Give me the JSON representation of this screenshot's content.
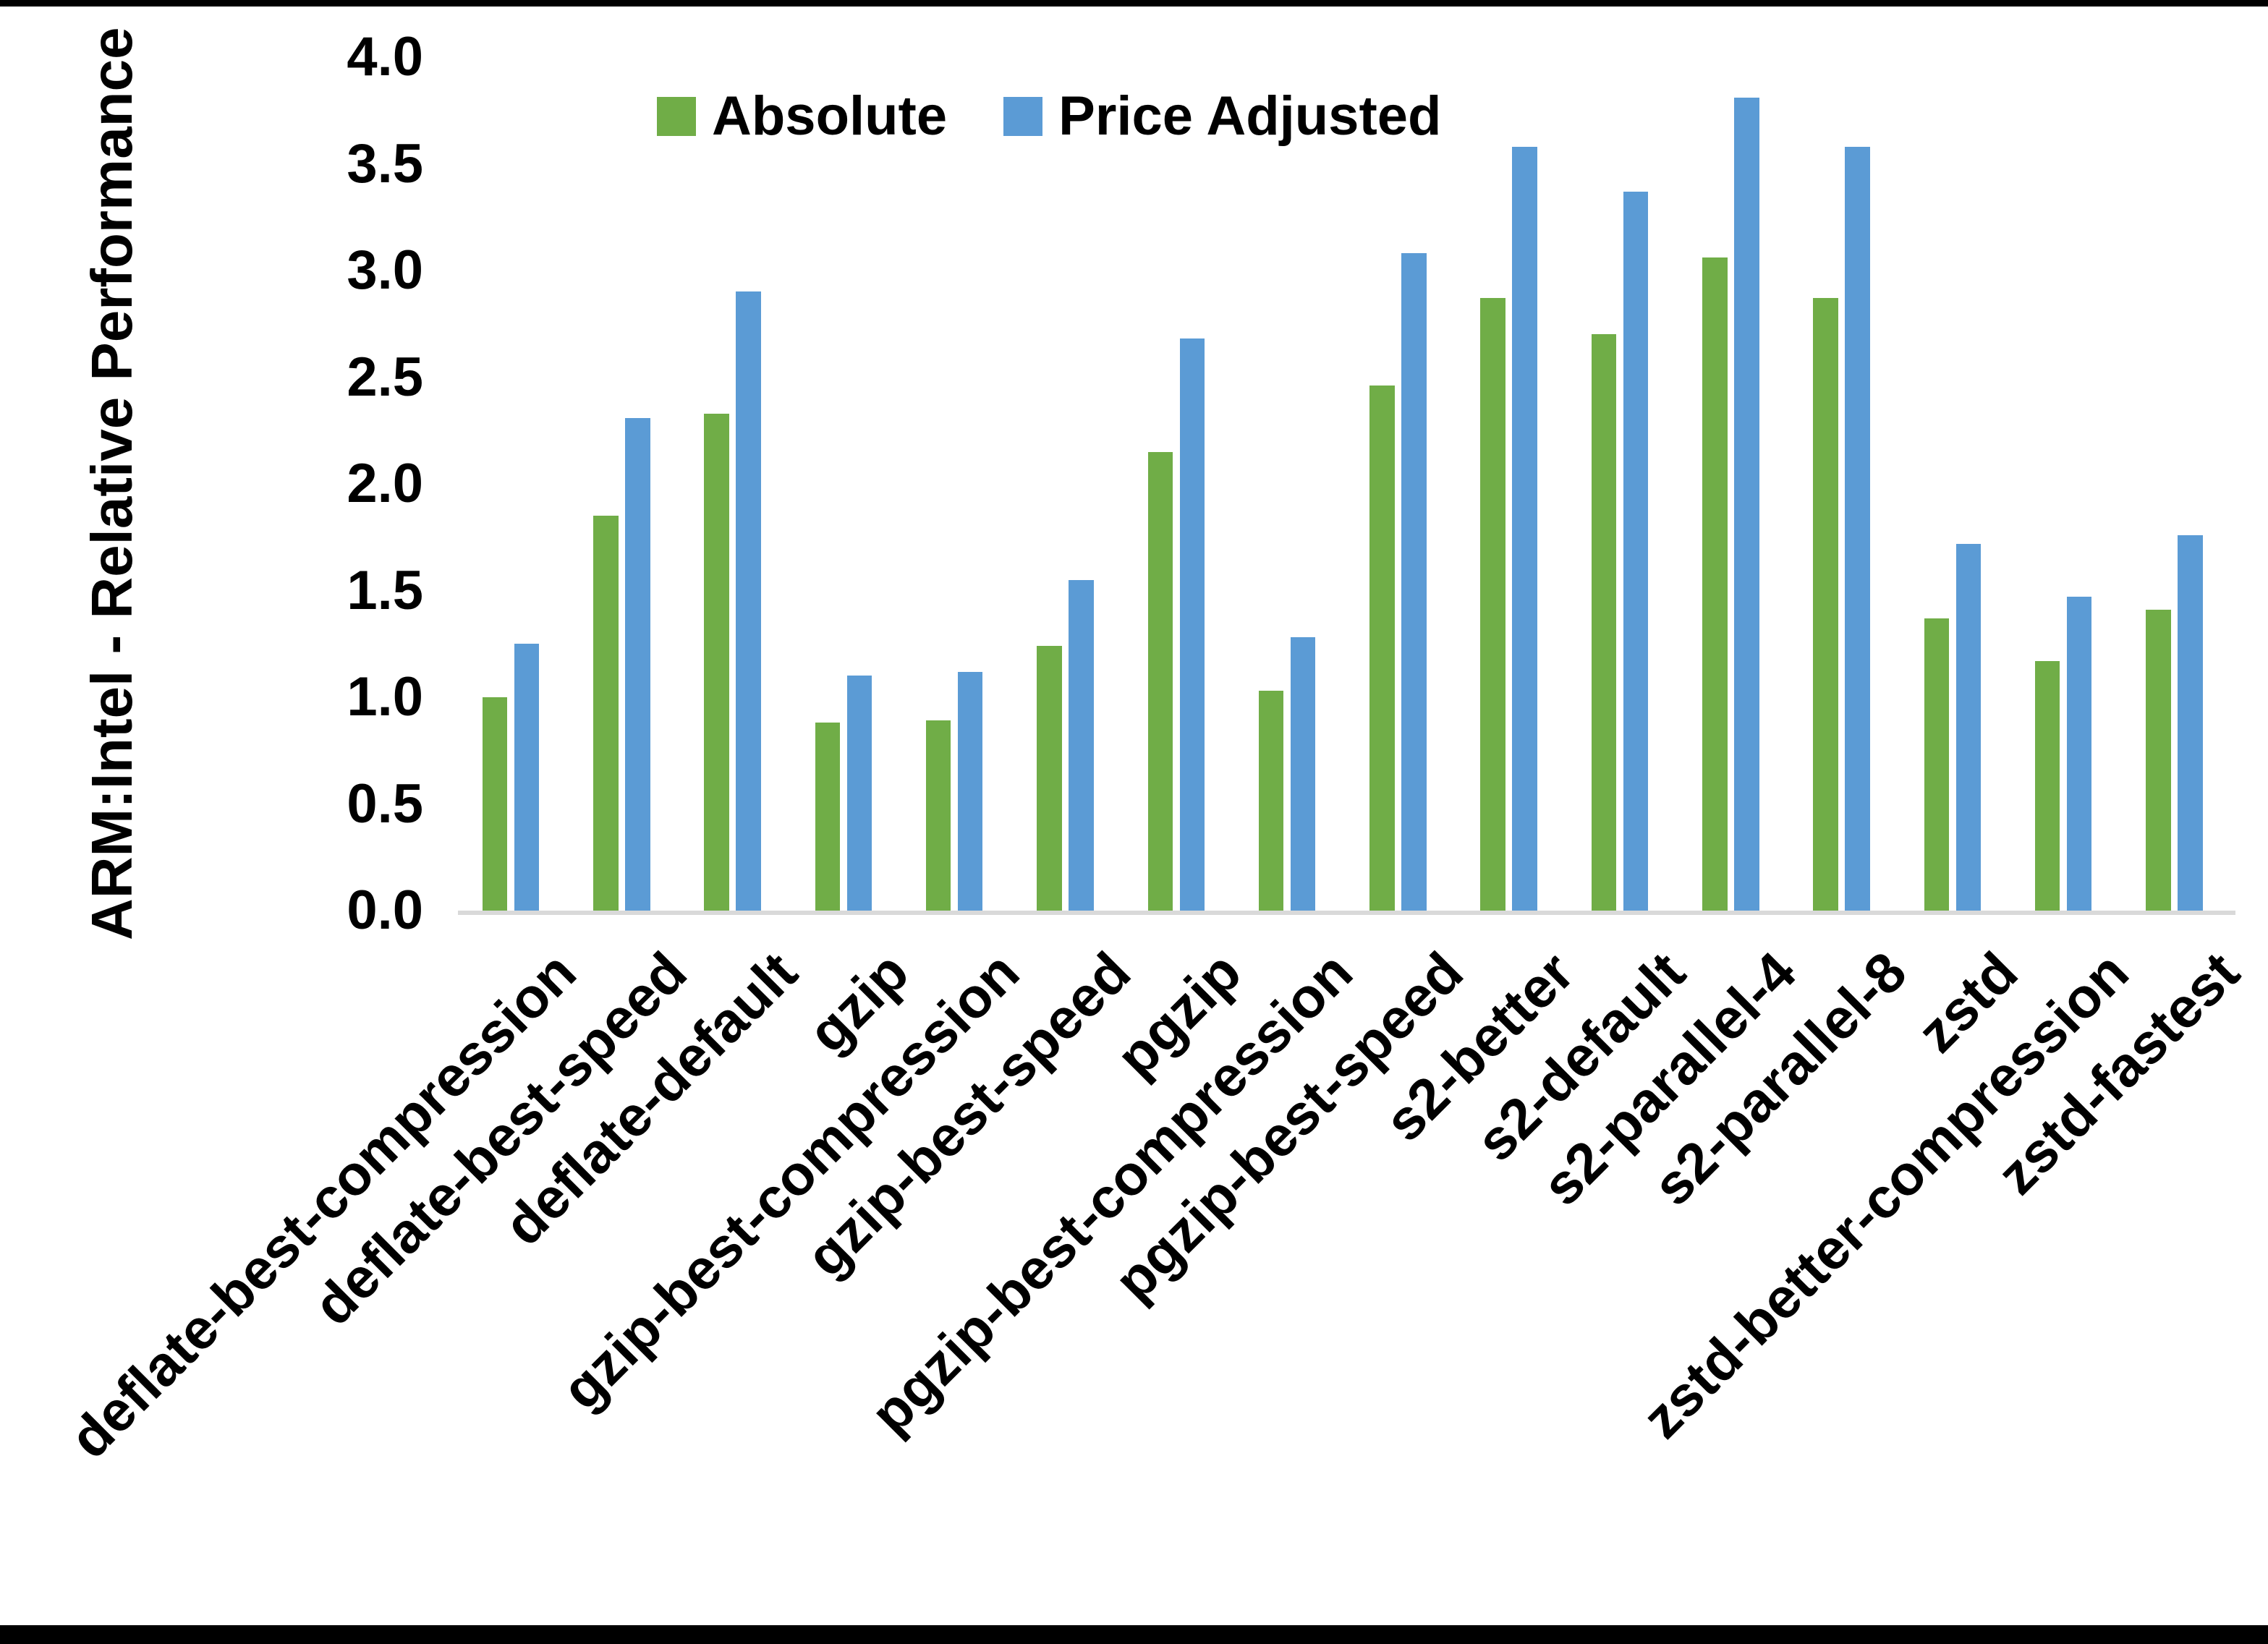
{
  "chart_data": {
    "type": "bar",
    "title": "",
    "xlabel": "",
    "ylabel": "ARM:Intel - Relative Performance",
    "ylim": [
      0.0,
      4.0
    ],
    "ytick_step": 0.5,
    "yticks": [
      "4.0",
      "3.5",
      "3.0",
      "2.5",
      "2.0",
      "1.5",
      "1.0",
      "0.5",
      "0.0"
    ],
    "grid": false,
    "legend_position": "top",
    "axis_line_color": "#D9D9D9",
    "categories": [
      "deflate-best-compression",
      "deflate-best-speed",
      "deflate-default",
      "gzip",
      "gzip-best-compression",
      "gzip-best-speed",
      "pgzip",
      "pgzip-best-compression",
      "pgzip-best-speed",
      "s2-better",
      "s2-default",
      "s2-parallel-4",
      "s2-parallel-8",
      "zstd",
      "zstd-better-compression",
      "zstd-fastest"
    ],
    "series": [
      {
        "name": "Absolute",
        "color": "#70AD47",
        "values": [
          1.0,
          1.85,
          2.33,
          0.88,
          0.89,
          1.24,
          2.15,
          1.03,
          2.46,
          2.87,
          2.7,
          3.06,
          2.87,
          1.37,
          1.17,
          1.41
        ]
      },
      {
        "name": "Price Adjusted",
        "color": "#5B9BD5",
        "values": [
          1.25,
          2.31,
          2.9,
          1.1,
          1.12,
          1.55,
          2.68,
          1.28,
          3.08,
          3.58,
          3.37,
          3.81,
          3.58,
          1.72,
          1.47,
          1.76
        ]
      }
    ]
  }
}
